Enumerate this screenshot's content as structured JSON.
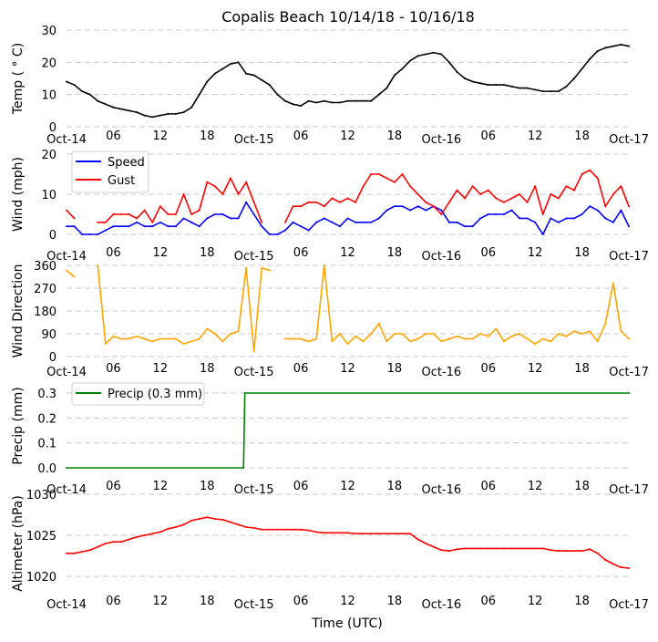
{
  "title": "Copalis Beach 10/14/18 - 10/16/18",
  "xlabel": "Time (UTC)",
  "x_ticks": [
    "Oct-14",
    "06",
    "12",
    "18",
    "Oct-15",
    "06",
    "12",
    "18",
    "Oct-16",
    "06",
    "12",
    "18",
    "Oct-17"
  ],
  "x_range": [
    "2018-10-14T00:00",
    "2018-10-17T00:00"
  ],
  "times": [
    "2018-10-14T00",
    "2018-10-14T01",
    "2018-10-14T02",
    "2018-10-14T03",
    "2018-10-14T04",
    "2018-10-14T05",
    "2018-10-14T06",
    "2018-10-14T07",
    "2018-10-14T08",
    "2018-10-14T09",
    "2018-10-14T10",
    "2018-10-14T11",
    "2018-10-14T12",
    "2018-10-14T13",
    "2018-10-14T14",
    "2018-10-14T15",
    "2018-10-14T16",
    "2018-10-14T17",
    "2018-10-14T18",
    "2018-10-14T19",
    "2018-10-14T20",
    "2018-10-14T21",
    "2018-10-14T22",
    "2018-10-14T23",
    "2018-10-15T00",
    "2018-10-15T01",
    "2018-10-15T02",
    "2018-10-15T03",
    "2018-10-15T04",
    "2018-10-15T05",
    "2018-10-15T06",
    "2018-10-15T07",
    "2018-10-15T08",
    "2018-10-15T09",
    "2018-10-15T10",
    "2018-10-15T11",
    "2018-10-15T12",
    "2018-10-15T13",
    "2018-10-15T14",
    "2018-10-15T15",
    "2018-10-15T16",
    "2018-10-15T17",
    "2018-10-15T18",
    "2018-10-15T19",
    "2018-10-15T20",
    "2018-10-15T21",
    "2018-10-15T22",
    "2018-10-15T23",
    "2018-10-16T00",
    "2018-10-16T01",
    "2018-10-16T02",
    "2018-10-16T03",
    "2018-10-16T04",
    "2018-10-16T05",
    "2018-10-16T06",
    "2018-10-16T07",
    "2018-10-16T08",
    "2018-10-16T09",
    "2018-10-16T10",
    "2018-10-16T11",
    "2018-10-16T12",
    "2018-10-16T13",
    "2018-10-16T14",
    "2018-10-16T15",
    "2018-10-16T16",
    "2018-10-16T17",
    "2018-10-16T18",
    "2018-10-16T19",
    "2018-10-16T20",
    "2018-10-16T21",
    "2018-10-16T22",
    "2018-10-16T23",
    "2018-10-17T00"
  ],
  "chart_data": [
    {
      "type": "line",
      "title": "Copalis Beach 10/14/18 - 10/16/18",
      "ylabel": "Temp ($^\\circ$C)",
      "ylabel_display": "Temp ( ° C)",
      "ylim": [
        0,
        30
      ],
      "y_ticks": [
        "0",
        "10",
        "20",
        "30"
      ],
      "y_tick_values": [
        0,
        10,
        20,
        30
      ],
      "grid": true,
      "series": [
        {
          "color": "#000000",
          "values": [
            14,
            13,
            11,
            10,
            8,
            7,
            6,
            5.5,
            5,
            4.5,
            3.5,
            3,
            3.5,
            4,
            4,
            4.5,
            6,
            10,
            14,
            16.5,
            18,
            19.5,
            20,
            16.5,
            16,
            14.5,
            13,
            10,
            8,
            7,
            6.5,
            8,
            7.5,
            8,
            7.5,
            7.5,
            8,
            8,
            8,
            8,
            10,
            12,
            16,
            18,
            20.5,
            22,
            22.5,
            23,
            22.5,
            20,
            17,
            15,
            14,
            13.5,
            13,
            13,
            13,
            12.5,
            12,
            12,
            11.5,
            11,
            11,
            11,
            12.5,
            15,
            18,
            21,
            23.5,
            24.5,
            25,
            25.5,
            25
          ]
        }
      ]
    },
    {
      "type": "line",
      "ylabel": "Wind (mph)",
      "ylim": [
        0,
        20
      ],
      "y_ticks": [
        "0",
        "10",
        "20"
      ],
      "y_tick_values": [
        0,
        10,
        20
      ],
      "grid": true,
      "legend": "top-left",
      "series": [
        {
          "name": "Speed",
          "color": "#0000ff",
          "values": [
            2,
            2,
            0,
            0,
            0,
            1,
            2,
            2,
            2,
            3,
            2,
            2,
            3,
            2,
            2,
            4,
            3,
            2,
            4,
            5,
            5,
            4,
            4,
            8,
            5,
            2,
            0,
            0,
            1,
            3,
            2,
            1,
            3,
            4,
            3,
            2,
            4,
            3,
            3,
            3,
            4,
            6,
            7,
            7,
            6,
            7,
            6,
            7,
            6,
            3,
            3,
            2,
            2,
            4,
            5,
            5,
            5,
            6,
            4,
            4,
            3,
            0,
            4,
            3,
            4,
            4,
            5,
            7,
            6,
            4,
            3,
            6,
            2
          ]
        },
        {
          "name": "Gust",
          "color": "#ff0000",
          "values": [
            6,
            4,
            null,
            null,
            3,
            3,
            5,
            5,
            5,
            4,
            6,
            3,
            7,
            5,
            5,
            10,
            5,
            6,
            13,
            12,
            10,
            14,
            10,
            13,
            8,
            3,
            null,
            null,
            3,
            7,
            7,
            8,
            8,
            7,
            9,
            8,
            9,
            8,
            12,
            15,
            15,
            14,
            13,
            15,
            12,
            10,
            8,
            7,
            5,
            8,
            11,
            9,
            12,
            10,
            11,
            9,
            8,
            9,
            10,
            8,
            12,
            5,
            10,
            9,
            12,
            11,
            15,
            16,
            14,
            7,
            10,
            12,
            7
          ]
        }
      ]
    },
    {
      "type": "line",
      "ylabel": "Wind Direction",
      "ylim": [
        0,
        360
      ],
      "y_ticks": [
        "0",
        "90",
        "180",
        "270",
        "360"
      ],
      "y_tick_values": [
        0,
        90,
        180,
        270,
        360
      ],
      "grid": true,
      "series": [
        {
          "color": "#ffa500",
          "values": [
            340,
            315,
            null,
            null,
            360,
            50,
            80,
            70,
            70,
            80,
            70,
            60,
            70,
            70,
            70,
            50,
            60,
            70,
            110,
            90,
            60,
            90,
            100,
            350,
            20,
            350,
            340,
            null,
            70,
            70,
            70,
            60,
            70,
            360,
            60,
            90,
            50,
            80,
            60,
            90,
            130,
            60,
            90,
            90,
            60,
            70,
            90,
            90,
            60,
            70,
            80,
            70,
            70,
            90,
            80,
            110,
            60,
            80,
            90,
            70,
            50,
            70,
            60,
            90,
            80,
            100,
            90,
            100,
            60,
            130,
            290,
            100,
            70
          ]
        }
      ]
    },
    {
      "type": "line",
      "ylabel": "Precip (mm)",
      "ylim": [
        0,
        0.3
      ],
      "y_ticks": [
        "0.0",
        "0.1",
        "0.2",
        "0.3"
      ],
      "y_tick_values": [
        0,
        0.1,
        0.2,
        0.3
      ],
      "grid": true,
      "legend": "top-left",
      "series": [
        {
          "name": "Precip (0.3 mm)",
          "color": "#008000",
          "points": [
            [
              "2018-10-14T00:00",
              0
            ],
            [
              "2018-10-14T22:40",
              0
            ],
            [
              "2018-10-14T22:50",
              0.3
            ],
            [
              "2018-10-17T00:00",
              0.3
            ]
          ]
        }
      ]
    },
    {
      "type": "line",
      "ylabel": "Altimeter (hPa)",
      "xlabel": "Time (UTC)",
      "ylim": [
        1018,
        1030
      ],
      "y_ticks": [
        "1020",
        "1025",
        "1030"
      ],
      "y_tick_values": [
        1020,
        1025,
        1030
      ],
      "grid": true,
      "series": [
        {
          "color": "#ff0000",
          "values": [
            1022.8,
            1022.8,
            1023,
            1023.2,
            1023.6,
            1024,
            1024.2,
            1024.2,
            1024.5,
            1024.8,
            1025,
            1025.2,
            1025.4,
            1025.8,
            1026,
            1026.3,
            1026.8,
            1027,
            1027.2,
            1027,
            1026.9,
            1026.6,
            1026.3,
            1026,
            1025.9,
            1025.7,
            1025.7,
            1025.7,
            1025.7,
            1025.7,
            1025.7,
            1025.6,
            1025.4,
            1025.3,
            1025.3,
            1025.3,
            1025.3,
            1025.2,
            1025.2,
            1025.2,
            1025.2,
            1025.2,
            1025.2,
            1025.2,
            1025.2,
            1024.5,
            1024,
            1023.6,
            1023.2,
            1023.1,
            1023.3,
            1023.4,
            1023.4,
            1023.4,
            1023.4,
            1023.4,
            1023.4,
            1023.4,
            1023.4,
            1023.4,
            1023.4,
            1023.4,
            1023.2,
            1023.1,
            1023.1,
            1023.1,
            1023.1,
            1023.3,
            1022.8,
            1022,
            1021.5,
            1021.1,
            1021
          ]
        }
      ]
    }
  ]
}
